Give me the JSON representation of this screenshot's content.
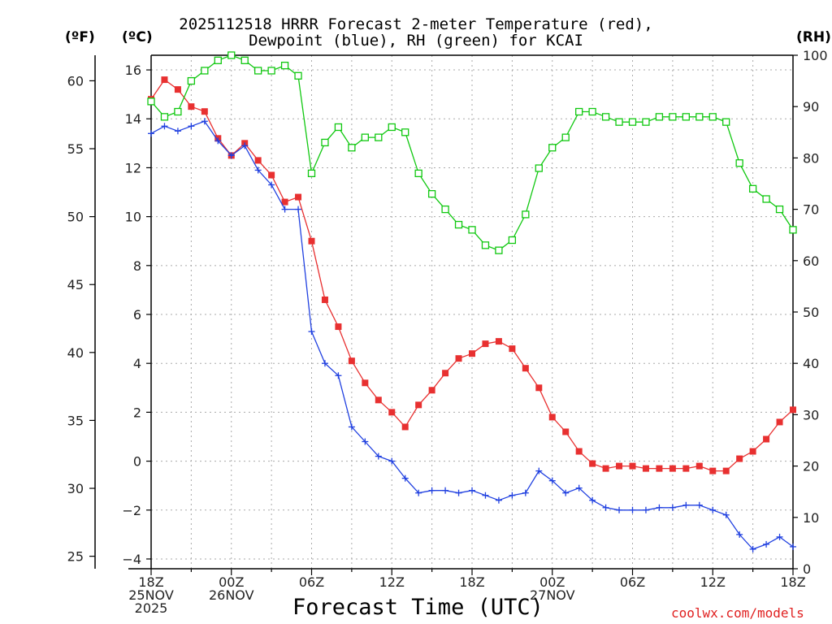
{
  "title_line1": "2025112518 HRRR Forecast 2-meter Temperature (red),",
  "title_line2": "Dewpoint (blue), RH (green) for KCAI",
  "unit_f": "(ºF)",
  "unit_c": "(ºC)",
  "unit_rh": "(RH)",
  "xlabel": "Forecast Time (UTC)",
  "watermark": "coolwx.com/models",
  "colors": {
    "temperature": "#e83030",
    "dewpoint": "#2040e0",
    "rh": "#10c810",
    "grid": "#aaaaaa"
  },
  "chart_data": {
    "type": "line",
    "title": "2025112518 HRRR Forecast 2-meter Temperature (red), Dewpoint (blue), RH (green) for KCAI",
    "xlabel": "Forecast Time (UTC)",
    "x_hours": [
      0,
      1,
      2,
      3,
      4,
      5,
      6,
      7,
      8,
      9,
      10,
      11,
      12,
      13,
      14,
      15,
      16,
      17,
      18,
      19,
      20,
      21,
      22,
      23,
      24,
      25,
      26,
      27,
      28,
      29,
      30,
      31,
      32,
      33,
      34,
      35,
      36,
      37,
      38,
      39,
      40,
      41,
      42,
      43,
      44,
      45,
      46,
      47,
      48
    ],
    "xlim": [
      0,
      48
    ],
    "xticks": [
      {
        "hour": 0,
        "lines": [
          "18Z",
          "25NOV",
          "2025"
        ]
      },
      {
        "hour": 6,
        "lines": [
          "00Z",
          "26NOV"
        ]
      },
      {
        "hour": 12,
        "lines": [
          "06Z"
        ]
      },
      {
        "hour": 18,
        "lines": [
          "12Z"
        ]
      },
      {
        "hour": 24,
        "lines": [
          "18Z"
        ]
      },
      {
        "hour": 30,
        "lines": [
          "00Z",
          "27NOV"
        ]
      },
      {
        "hour": 36,
        "lines": [
          "06Z"
        ]
      },
      {
        "hour": 42,
        "lines": [
          "12Z"
        ]
      },
      {
        "hour": 48,
        "lines": [
          "18Z"
        ]
      }
    ],
    "left_axis_c": {
      "label": "(ºC)",
      "ylim": [
        -4.4,
        16.6
      ],
      "ticks": [
        -4,
        -2,
        0,
        2,
        4,
        6,
        8,
        10,
        12,
        14,
        16
      ]
    },
    "left_axis_f": {
      "label": "(ºF)",
      "ticks": [
        25,
        30,
        35,
        40,
        45,
        50,
        55,
        60
      ]
    },
    "right_axis_rh": {
      "label": "(RH)",
      "ylim": [
        0,
        100
      ],
      "ticks": [
        0,
        10,
        20,
        30,
        40,
        50,
        60,
        70,
        80,
        90,
        100
      ]
    },
    "series": [
      {
        "name": "2-meter Temperature",
        "axis": "celsius",
        "marker": "filled-square",
        "values": [
          14.8,
          15.6,
          15.2,
          14.5,
          14.3,
          13.2,
          12.5,
          13.0,
          12.3,
          11.7,
          10.6,
          10.8,
          9.0,
          6.6,
          5.5,
          4.1,
          3.2,
          2.5,
          2.0,
          1.4,
          2.3,
          2.9,
          3.6,
          4.2,
          4.4,
          4.8,
          4.9,
          4.6,
          3.8,
          3.0,
          1.8,
          1.2,
          0.4,
          -0.1,
          -0.3,
          -0.2,
          -0.2,
          -0.3,
          -0.3,
          -0.3,
          -0.3,
          -0.2,
          -0.4,
          -0.4,
          0.1,
          0.4,
          0.9,
          1.6,
          2.1
        ]
      },
      {
        "name": "Dewpoint",
        "axis": "celsius",
        "marker": "plus",
        "values": [
          13.4,
          13.7,
          13.5,
          13.7,
          13.9,
          13.1,
          12.5,
          12.9,
          11.9,
          11.3,
          10.3,
          10.3,
          5.3,
          4.0,
          3.5,
          1.4,
          0.8,
          0.2,
          0.0,
          -0.7,
          -1.3,
          -1.2,
          -1.2,
          -1.3,
          -1.2,
          -1.4,
          -1.6,
          -1.4,
          -1.3,
          -0.4,
          -0.8,
          -1.3,
          -1.1,
          -1.6,
          -1.9,
          -2.0,
          -2.0,
          -2.0,
          -1.9,
          -1.9,
          -1.8,
          -1.8,
          -2.0,
          -2.2,
          -3.0,
          -3.6,
          -3.4,
          -3.1,
          -3.5
        ]
      },
      {
        "name": "RH",
        "axis": "rh",
        "marker": "open-square",
        "values": [
          91,
          88,
          89,
          95,
          97,
          99,
          100,
          99,
          97,
          97,
          98,
          96,
          77,
          83,
          86,
          82,
          84,
          84,
          86,
          85,
          77,
          73,
          70,
          67,
          66,
          63,
          62,
          64,
          69,
          78,
          82,
          84,
          89,
          89,
          88,
          87,
          87,
          87,
          88,
          88,
          88,
          88,
          88,
          87,
          79,
          74,
          72,
          70,
          66
        ]
      }
    ]
  }
}
